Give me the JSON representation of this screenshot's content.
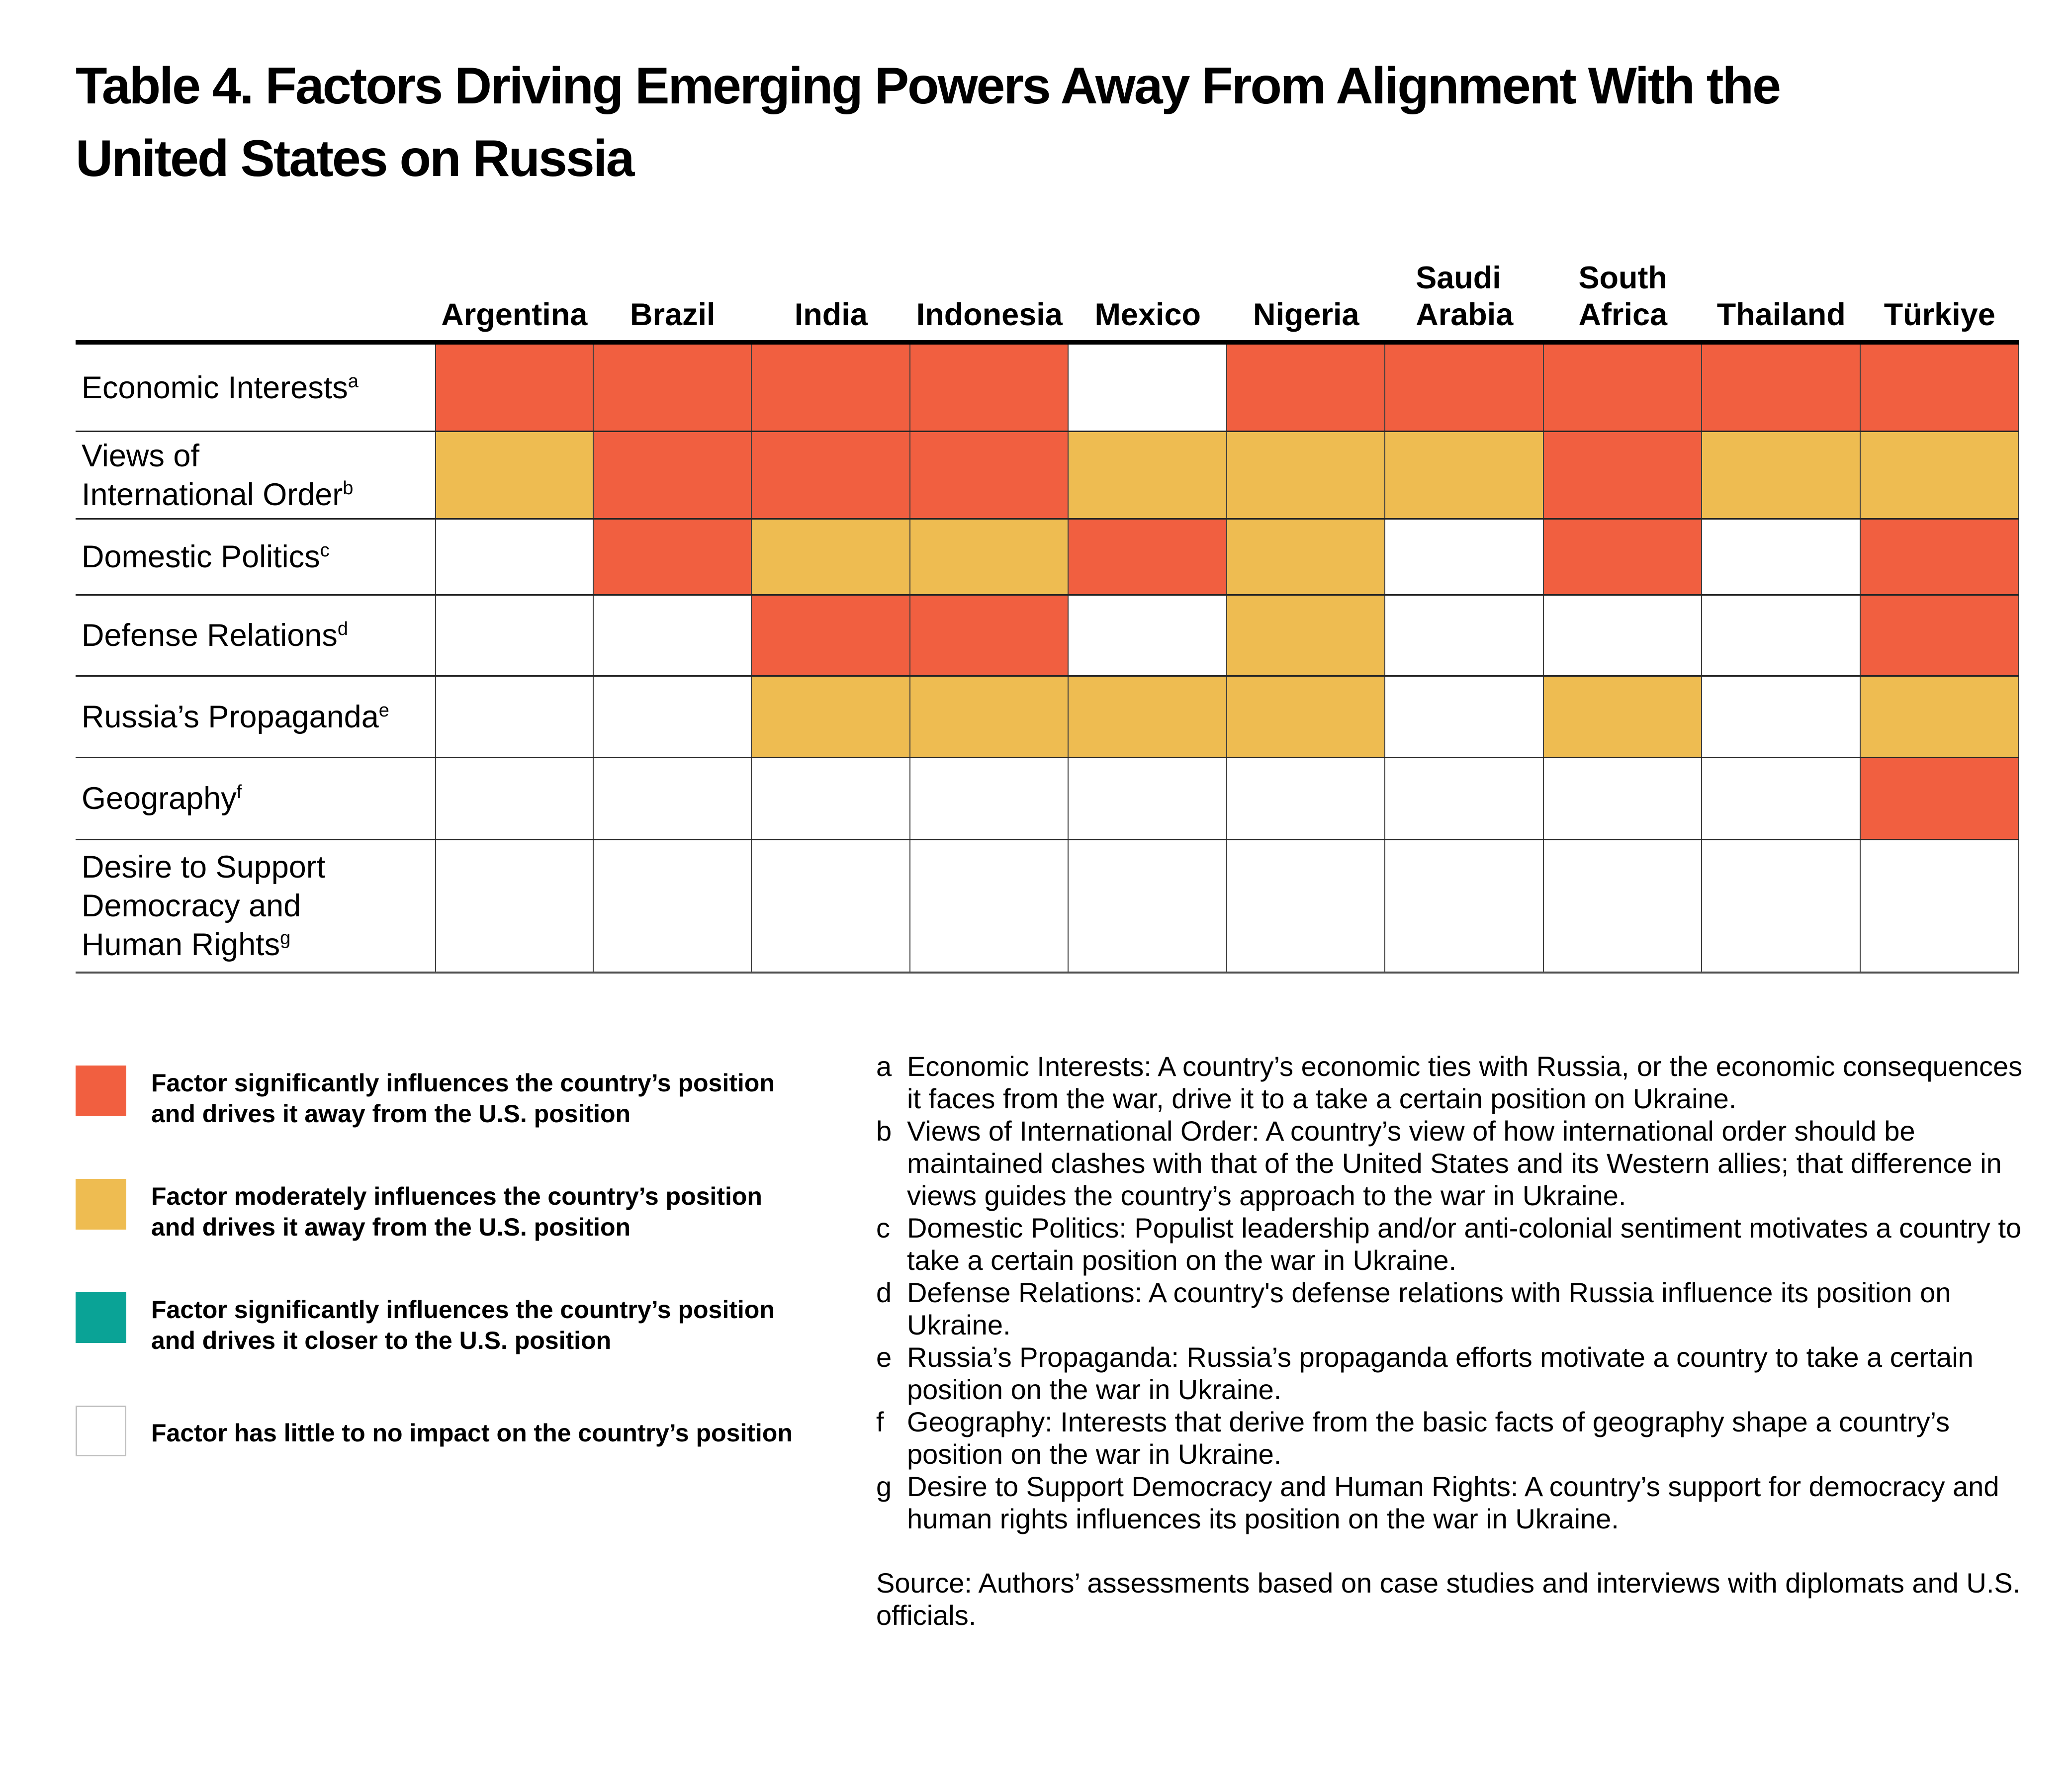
{
  "title": "Table 4. Factors Driving Emerging Powers Away From Alignment With the\nUnited States on Russia",
  "colors": {
    "significant_away": "#F15F40",
    "moderate_away": "#EEBC51",
    "significant_closer": "#0AA396",
    "none": "#FFFFFF"
  },
  "chart_data": {
    "type": "heatmap",
    "title": "Table 4. Factors Driving Emerging Powers Away From Alignment With the United States on Russia",
    "columns": [
      "Argentina",
      "Brazil",
      "India",
      "Indonesia",
      "Mexico",
      "Nigeria",
      "Saudi Arabia",
      "South Africa",
      "Thailand",
      "Türkiye"
    ],
    "columns_display": [
      "Argentina",
      "Brazil",
      "India",
      "Indonesia",
      "Mexico",
      "Nigeria",
      "Saudi\nArabia",
      "South\nAfrica",
      "Thailand",
      "Türkiye"
    ],
    "value_scale": {
      "significant_away": "Factor significantly influences the country's position and drives it away from the U.S. position",
      "moderate_away": "Factor moderately influences the country's position and drives it away from the U.S. position",
      "significant_closer": "Factor significantly influences the country's position and drives it closer to the U.S. position",
      "none": "Factor has little to no impact on the country's position"
    },
    "rows": [
      {
        "label": "Economic Interests",
        "label_display": "Economic Interests",
        "footnote": "a",
        "values": [
          "significant_away",
          "significant_away",
          "significant_away",
          "significant_away",
          "none",
          "significant_away",
          "significant_away",
          "significant_away",
          "significant_away",
          "significant_away"
        ]
      },
      {
        "label": "Views of International Order",
        "label_display": "Views of\nInternational Order",
        "footnote": "b",
        "values": [
          "moderate_away",
          "significant_away",
          "significant_away",
          "significant_away",
          "moderate_away",
          "moderate_away",
          "moderate_away",
          "significant_away",
          "moderate_away",
          "moderate_away"
        ]
      },
      {
        "label": "Domestic Politics",
        "label_display": "Domestic Politics",
        "footnote": "c",
        "values": [
          "none",
          "significant_away",
          "moderate_away",
          "moderate_away",
          "significant_away",
          "moderate_away",
          "none",
          "significant_away",
          "none",
          "significant_away"
        ]
      },
      {
        "label": "Defense Relations",
        "label_display": "Defense Relations",
        "footnote": "d",
        "values": [
          "none",
          "none",
          "significant_away",
          "significant_away",
          "none",
          "moderate_away",
          "none",
          "none",
          "none",
          "significant_away"
        ]
      },
      {
        "label": "Russia's Propaganda",
        "label_display": "Russia’s Propaganda",
        "footnote": "e",
        "values": [
          "none",
          "none",
          "moderate_away",
          "moderate_away",
          "moderate_away",
          "moderate_away",
          "none",
          "moderate_away",
          "none",
          "moderate_away"
        ]
      },
      {
        "label": "Geography",
        "label_display": "Geography",
        "footnote": "f",
        "values": [
          "none",
          "none",
          "none",
          "none",
          "none",
          "none",
          "none",
          "none",
          "none",
          "significant_away"
        ]
      },
      {
        "label": "Desire to Support Democracy and Human Rights",
        "label_display": "Desire to Support\nDemocracy and\nHuman Rights",
        "footnote": "g",
        "values": [
          "none",
          "none",
          "none",
          "none",
          "none",
          "none",
          "none",
          "none",
          "none",
          "none"
        ]
      }
    ]
  },
  "legend": [
    {
      "key": "significant_away",
      "label": "Factor significantly influences the country’s position\nand drives it away from the U.S. position"
    },
    {
      "key": "moderate_away",
      "label": "Factor moderately influences the country’s position\nand drives it away from the U.S. position"
    },
    {
      "key": "significant_closer",
      "label": "Factor significantly influences the country’s position\nand drives it closer to the U.S. position"
    },
    {
      "key": "none",
      "label": "Factor has little to no impact on the country’s position"
    }
  ],
  "footnotes": [
    {
      "marker": "a",
      "text": "Economic Interests: A country’s economic ties with Russia, or the economic consequences it faces from the war, drive it to a take a certain position on Ukraine."
    },
    {
      "marker": "b",
      "text": "Views of International Order: A country’s view of how international order should be maintained clashes with that of the United States and its Western allies; that difference in views guides the country’s approach to the war in Ukraine."
    },
    {
      "marker": "c",
      "text": "Domestic Politics: Populist leadership and/or anti-colonial sentiment motivates a country to take a certain position on the war in Ukraine."
    },
    {
      "marker": "d",
      "text": "Defense Relations: A country's defense relations with Russia influence its position on Ukraine."
    },
    {
      "marker": "e",
      "text": "Russia’s Propaganda: Russia’s propaganda efforts motivate a country to take a certain position on the war in Ukraine."
    },
    {
      "marker": "f",
      "text": "Geography: Interests that derive from the basic facts of geography shape a country’s position on the war in Ukraine."
    },
    {
      "marker": "g",
      "text": "Desire to Support Democracy and Human Rights: A country’s support for democracy and human rights influences its position on the war in Ukraine."
    }
  ],
  "source": "Source: Authors’ assessments based on case studies and interviews with diplomats and U.S. officials."
}
